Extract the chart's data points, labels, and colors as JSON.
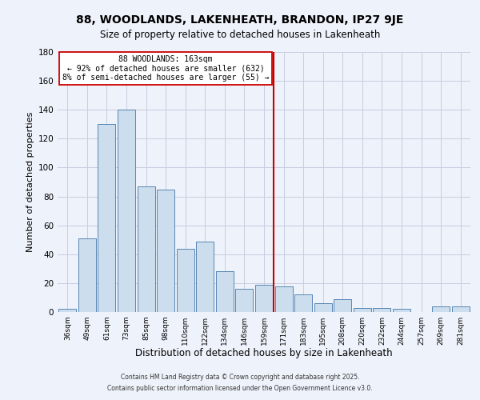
{
  "title": "88, WOODLANDS, LAKENHEATH, BRANDON, IP27 9JE",
  "subtitle": "Size of property relative to detached houses in Lakenheath",
  "xlabel": "Distribution of detached houses by size in Lakenheath",
  "ylabel": "Number of detached properties",
  "bar_labels": [
    "36sqm",
    "49sqm",
    "61sqm",
    "73sqm",
    "85sqm",
    "98sqm",
    "110sqm",
    "122sqm",
    "134sqm",
    "146sqm",
    "159sqm",
    "171sqm",
    "183sqm",
    "195sqm",
    "208sqm",
    "220sqm",
    "232sqm",
    "244sqm",
    "257sqm",
    "269sqm",
    "281sqm"
  ],
  "bar_values": [
    2,
    51,
    130,
    140,
    87,
    85,
    44,
    49,
    28,
    16,
    19,
    18,
    12,
    6,
    9,
    3,
    3,
    2,
    0,
    4,
    4
  ],
  "bar_color": "#ccdded",
  "bar_edge_color": "#4477aa",
  "vline_x": 10.5,
  "vline_color": "#cc0000",
  "annotation_title": "88 WOODLANDS: 163sqm",
  "annotation_line1": "← 92% of detached houses are smaller (632)",
  "annotation_line2": "8% of semi-detached houses are larger (55) →",
  "annotation_box_color": "#ffffff",
  "annotation_box_edge": "#cc0000",
  "ylim": [
    0,
    180
  ],
  "yticks": [
    0,
    20,
    40,
    60,
    80,
    100,
    120,
    140,
    160,
    180
  ],
  "background_color": "#eef2fa",
  "grid_color": "#c8cce0",
  "footer1": "Contains HM Land Registry data © Crown copyright and database right 2025.",
  "footer2": "Contains public sector information licensed under the Open Government Licence v3.0.",
  "title_fontsize": 10,
  "subtitle_fontsize": 8.5,
  "xlabel_fontsize": 8.5,
  "ylabel_fontsize": 8
}
